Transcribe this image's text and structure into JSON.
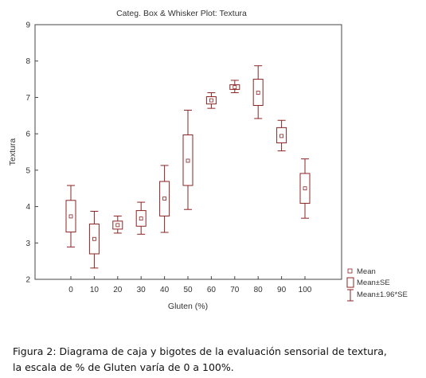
{
  "chart_data": {
    "type": "box",
    "title": "Categ. Box & Whisker Plot:  Textura",
    "xlabel": "Gluten (%)",
    "ylabel": "Textura",
    "ylim": [
      2,
      9
    ],
    "yticks": [
      "2",
      "3",
      "4",
      "5",
      "6",
      "7",
      "8",
      "9"
    ],
    "categories": [
      "0",
      "10",
      "20",
      "30",
      "40",
      "50",
      "60",
      "70",
      "80",
      "90",
      "100"
    ],
    "mean": [
      3.73,
      3.11,
      3.49,
      3.67,
      4.22,
      5.26,
      6.92,
      7.28,
      7.13,
      5.94,
      4.5
    ],
    "mean_minus_se": [
      3.3,
      2.7,
      3.38,
      3.46,
      3.74,
      4.58,
      6.82,
      7.22,
      6.78,
      5.75,
      4.09
    ],
    "mean_plus_se": [
      4.17,
      3.52,
      3.6,
      3.89,
      4.69,
      5.97,
      7.02,
      7.35,
      7.5,
      6.17,
      4.91
    ],
    "mean_minus_1_96_se": [
      2.89,
      2.31,
      3.27,
      3.24,
      3.29,
      3.92,
      6.7,
      7.13,
      6.42,
      5.53,
      3.68
    ],
    "mean_plus_1_96_se": [
      4.58,
      3.87,
      3.74,
      4.12,
      5.13,
      6.65,
      7.13,
      7.47,
      7.87,
      6.37,
      5.31
    ],
    "legend": {
      "position": "bottom-right",
      "items": [
        "Mean",
        "Mean±SE",
        "Mean±1.96*SE"
      ]
    },
    "color": "#8b2323",
    "grid": false
  },
  "caption": {
    "line1": "Figura 2: Diagrama de caja y bigotes de la evaluación sensorial de textura,",
    "line2": "la escala de % de Gluten varía de 0 a 100%."
  }
}
